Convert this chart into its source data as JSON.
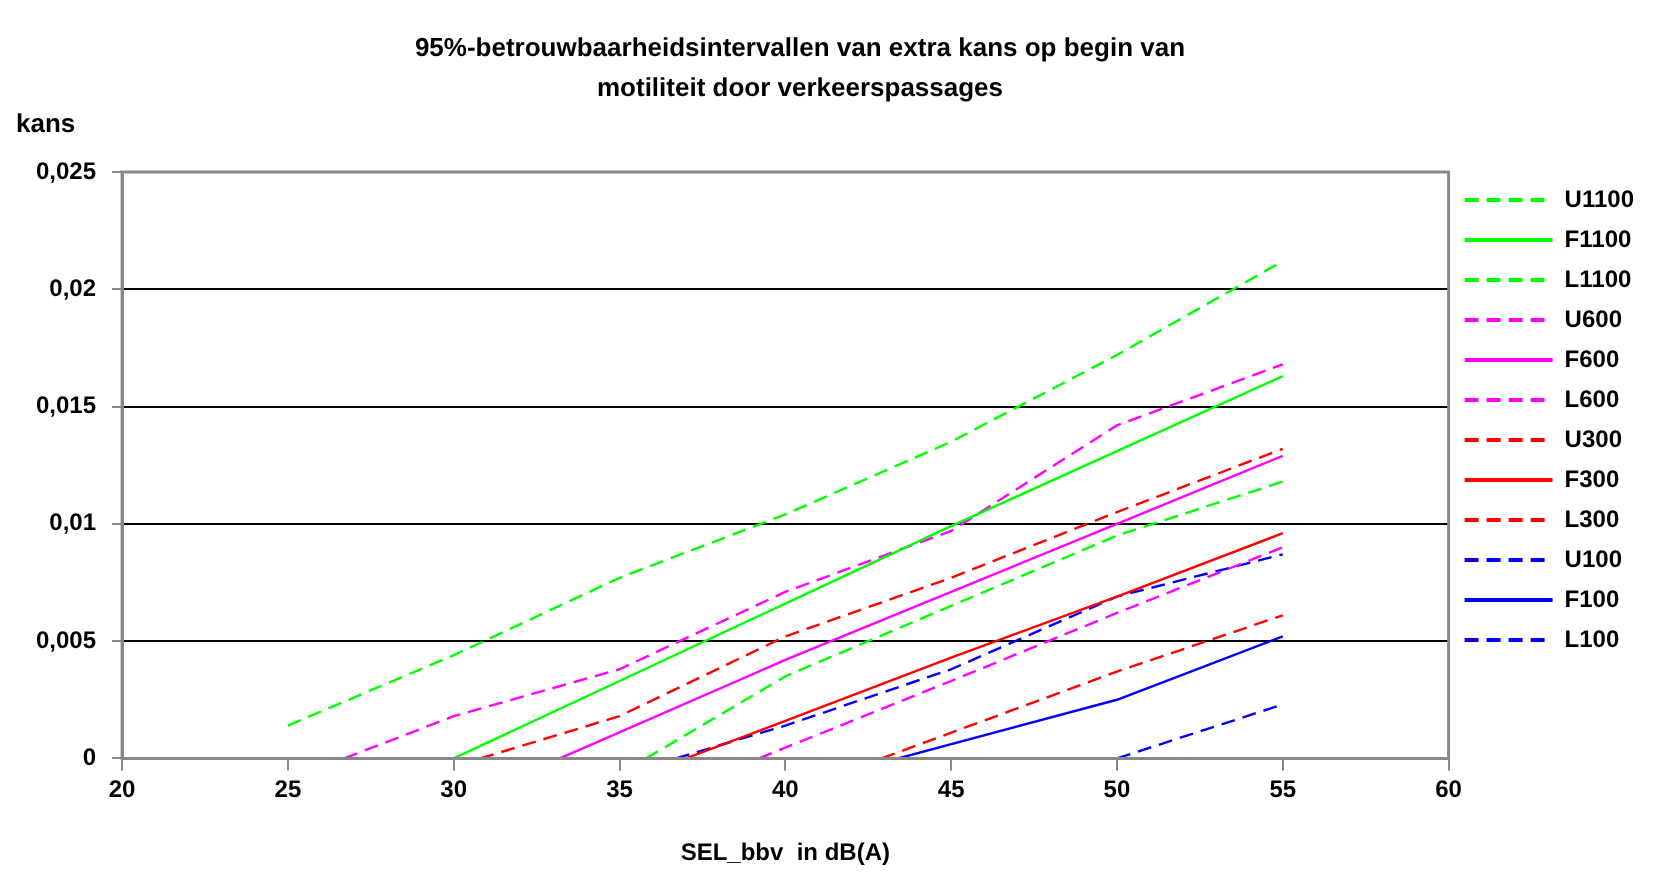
{
  "chart_data": {
    "type": "line",
    "title": "95%-betrouwbaarheidsintervallen van extra kans op begin van motiliteit door verkeerspassages",
    "xlabel": "SEL_bbv  in dB(A)",
    "ylabel": "kans",
    "xlim": [
      20,
      60
    ],
    "xticks": [
      20,
      25,
      30,
      35,
      40,
      45,
      50,
      55,
      60
    ],
    "ylim": [
      0,
      0.025
    ],
    "yticks": [
      {
        "value": 0,
        "label": "0"
      },
      {
        "value": 0.005,
        "label": "0,005"
      },
      {
        "value": 0.01,
        "label": "0,01"
      },
      {
        "value": 0.015,
        "label": "0,015"
      },
      {
        "value": 0.02,
        "label": "0,02"
      },
      {
        "value": 0.025,
        "label": "0,025"
      }
    ],
    "grid": "y",
    "legend": "right",
    "marker": "none",
    "series": [
      {
        "name": "U1100",
        "color": "#00ff00",
        "line_style": "dashed",
        "x": [
          25,
          30,
          35,
          40,
          45,
          50,
          55
        ],
        "values": [
          0.0014,
          0.0044,
          0.0077,
          0.0104,
          0.0135,
          0.0172,
          0.0212
        ]
      },
      {
        "name": "F1100",
        "color": "#00ff00",
        "line_style": "solid",
        "x": [
          30,
          35,
          40,
          45,
          50,
          55
        ],
        "values": [
          0,
          0.0033,
          0.0066,
          0.0099,
          0.0131,
          0.0163
        ]
      },
      {
        "name": "L1100",
        "color": "#00ff00",
        "line_style": "dashed",
        "x": [
          35.8,
          40,
          45,
          50,
          55
        ],
        "values": [
          0,
          0.0035,
          0.0065,
          0.0095,
          0.0118
        ]
      },
      {
        "name": "U600",
        "color": "#ff00ff",
        "line_style": "dashed",
        "x": [
          26.7,
          30,
          35,
          40,
          45,
          50,
          55
        ],
        "values": [
          0,
          0.0018,
          0.0038,
          0.0071,
          0.0097,
          0.0142,
          0.0168
        ]
      },
      {
        "name": "F600",
        "color": "#ff00ff",
        "line_style": "solid",
        "x": [
          33.2,
          40,
          45,
          50,
          55
        ],
        "values": [
          0,
          0.0042,
          0.0071,
          0.01,
          0.0129
        ]
      },
      {
        "name": "L600",
        "color": "#ff00ff",
        "line_style": "dashed",
        "x": [
          39.2,
          45,
          50,
          55
        ],
        "values": [
          0,
          0.0033,
          0.0062,
          0.009
        ]
      },
      {
        "name": "U300",
        "color": "#ff0000",
        "line_style": "dashed",
        "x": [
          30.8,
          35,
          40,
          45,
          50,
          55
        ],
        "values": [
          0,
          0.0018,
          0.0052,
          0.0077,
          0.0105,
          0.0132
        ]
      },
      {
        "name": "F300",
        "color": "#ff0000",
        "line_style": "solid",
        "x": [
          37,
          40,
          45,
          50,
          55
        ],
        "values": [
          0,
          0.0016,
          0.0043,
          0.0069,
          0.0096
        ]
      },
      {
        "name": "L300",
        "color": "#ff0000",
        "line_style": "dashed",
        "x": [
          42.9,
          50,
          55
        ],
        "values": [
          0,
          0.0037,
          0.0061
        ]
      },
      {
        "name": "U100",
        "color": "#0000ff",
        "line_style": "dashed",
        "x": [
          36.7,
          40,
          45,
          50,
          55
        ],
        "values": [
          0,
          0.0014,
          0.0038,
          0.0069,
          0.0087
        ]
      },
      {
        "name": "F100",
        "color": "#0000ff",
        "line_style": "solid",
        "x": [
          43.4,
          50,
          55
        ],
        "values": [
          0,
          0.0025,
          0.0052
        ]
      },
      {
        "name": "L100",
        "color": "#0000ff",
        "line_style": "dashed",
        "x": [
          50,
          55
        ],
        "values": [
          0,
          0.0023
        ]
      }
    ]
  }
}
